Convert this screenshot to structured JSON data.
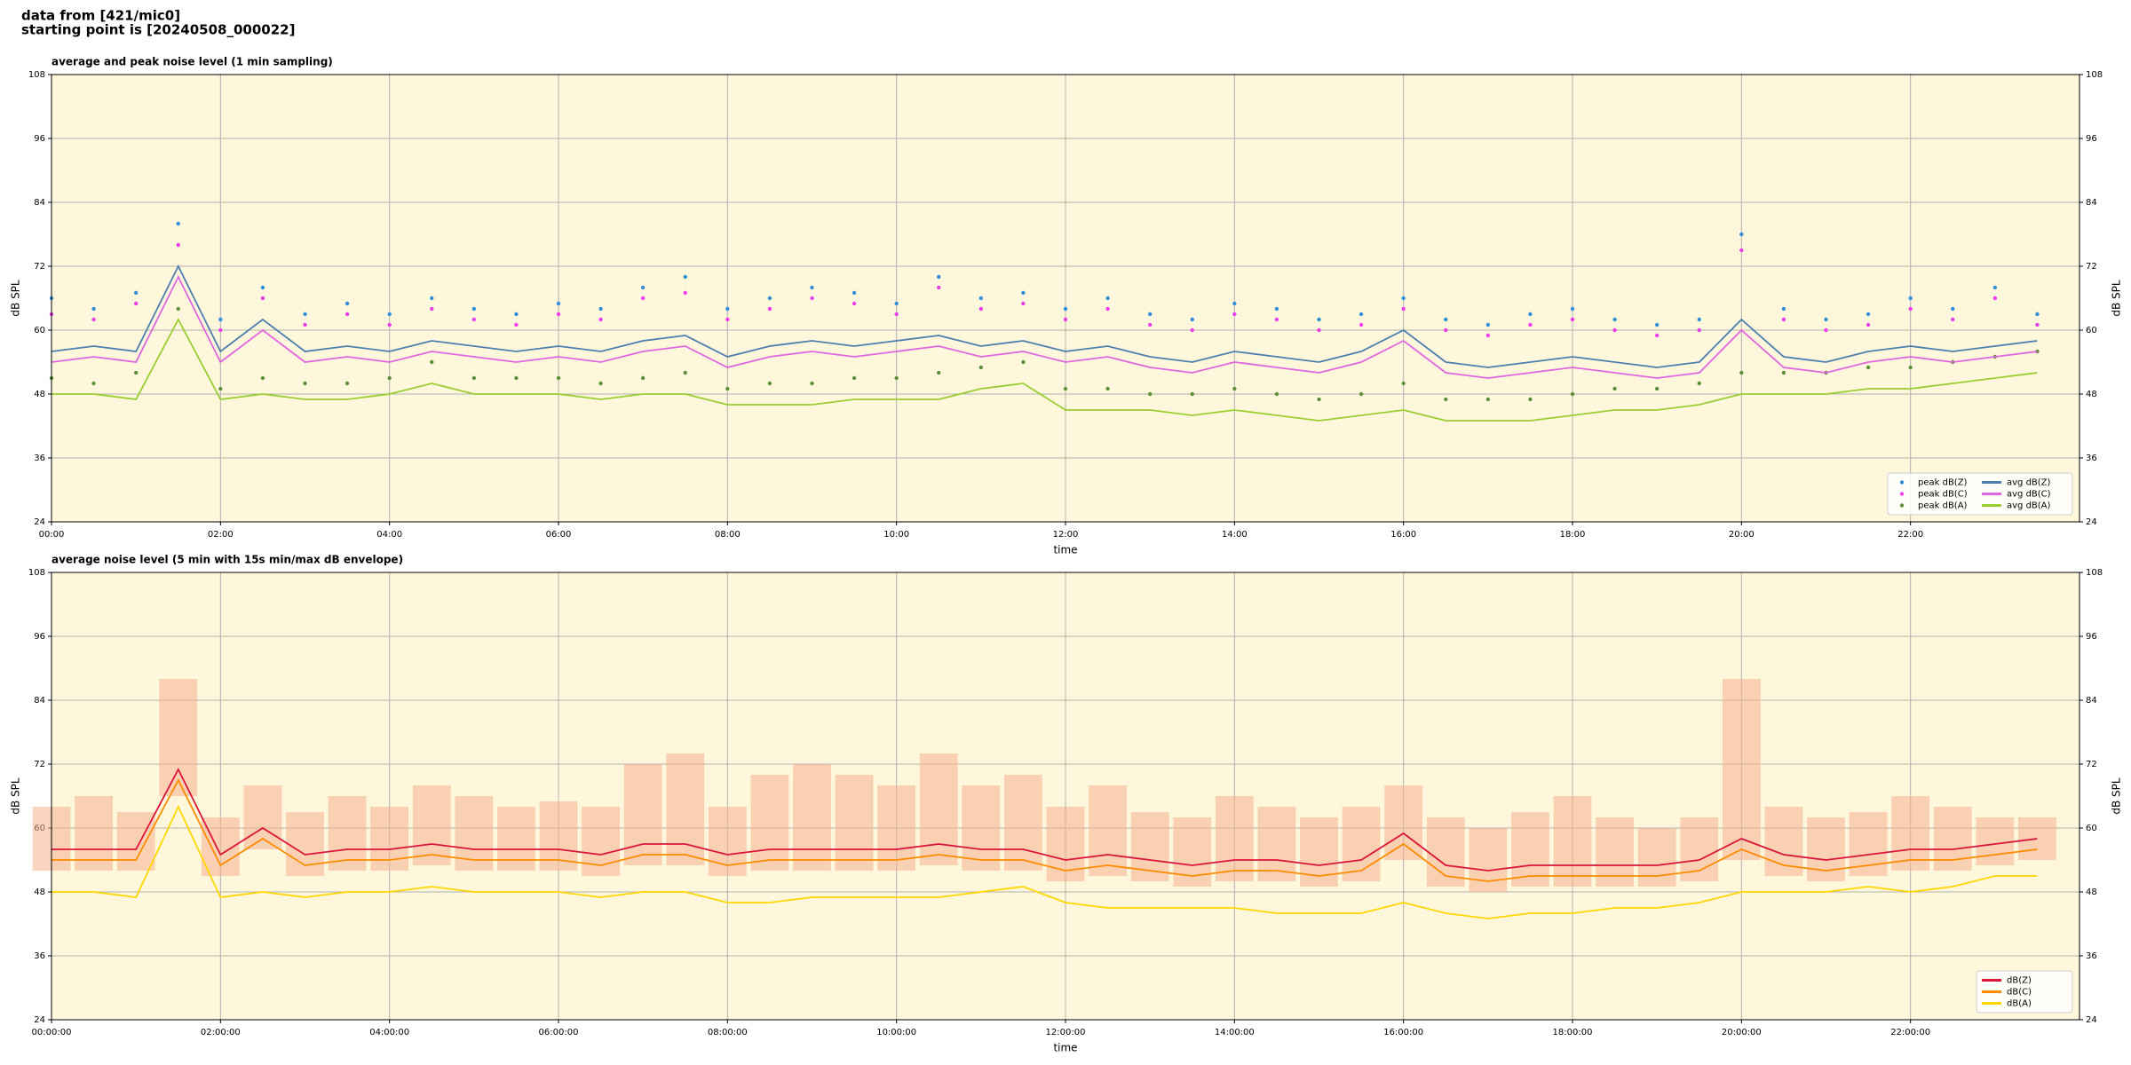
{
  "header": {
    "lines": [
      "data from [421/mic0]",
      "starting point is [20240508_000022]"
    ]
  },
  "chart_data": [
    {
      "type": "line",
      "title": "average and peak noise level (1 min sampling)",
      "x_label": "time",
      "y_label": "dB SPL",
      "background": "#fff7dc",
      "grid": true,
      "legend": "lower right",
      "x": [
        0,
        30,
        60,
        90,
        120,
        150,
        180,
        210,
        240,
        270,
        300,
        330,
        360,
        390,
        420,
        450,
        480,
        510,
        540,
        570,
        600,
        630,
        660,
        690,
        720,
        750,
        780,
        810,
        840,
        870,
        900,
        930,
        960,
        990,
        1020,
        1050,
        1080,
        1110,
        1140,
        1170,
        1200,
        1230,
        1260,
        1290,
        1320,
        1350,
        1380,
        1410
      ],
      "xlim": [
        0,
        1440
      ],
      "xticks": [
        {
          "value": 0,
          "label": "00:00"
        },
        {
          "value": 120,
          "label": "02:00"
        },
        {
          "value": 240,
          "label": "04:00"
        },
        {
          "value": 360,
          "label": "06:00"
        },
        {
          "value": 480,
          "label": "08:00"
        },
        {
          "value": 600,
          "label": "10:00"
        },
        {
          "value": 720,
          "label": "12:00"
        },
        {
          "value": 840,
          "label": "14:00"
        },
        {
          "value": 960,
          "label": "16:00"
        },
        {
          "value": 1080,
          "label": "18:00"
        },
        {
          "value": 1200,
          "label": "20:00"
        },
        {
          "value": 1320,
          "label": "22:00"
        }
      ],
      "ylim": [
        24,
        108
      ],
      "yticks": [
        24,
        36,
        48,
        60,
        72,
        84,
        96,
        108
      ],
      "series": [
        {
          "name": "peak dB(Z)",
          "type": "scatter",
          "color": "#2f8fd8",
          "values": [
            66,
            64,
            67,
            80,
            62,
            68,
            63,
            65,
            63,
            66,
            64,
            63,
            65,
            64,
            68,
            70,
            64,
            66,
            68,
            67,
            65,
            70,
            66,
            67,
            64,
            66,
            63,
            62,
            65,
            64,
            62,
            63,
            66,
            62,
            61,
            63,
            64,
            62,
            61,
            62,
            78,
            64,
            62,
            63,
            66,
            64,
            68,
            63
          ]
        },
        {
          "name": "peak dB(C)",
          "type": "scatter",
          "color": "#e83ee8",
          "values": [
            63,
            62,
            65,
            76,
            60,
            66,
            61,
            63,
            61,
            64,
            62,
            61,
            63,
            62,
            66,
            67,
            62,
            64,
            66,
            65,
            63,
            68,
            64,
            65,
            62,
            64,
            61,
            60,
            63,
            62,
            60,
            61,
            64,
            60,
            59,
            61,
            62,
            60,
            59,
            60,
            75,
            62,
            60,
            61,
            64,
            62,
            66,
            61
          ]
        },
        {
          "name": "peak dB(A)",
          "type": "scatter",
          "color": "#5e8f3a",
          "values": [
            51,
            50,
            52,
            64,
            49,
            51,
            50,
            50,
            51,
            54,
            51,
            51,
            51,
            50,
            51,
            52,
            49,
            50,
            50,
            51,
            51,
            52,
            53,
            54,
            49,
            49,
            48,
            48,
            49,
            48,
            47,
            48,
            50,
            47,
            47,
            47,
            48,
            49,
            49,
            50,
            52,
            52,
            52,
            53,
            53,
            54,
            55,
            56
          ]
        },
        {
          "name": "avg dB(Z)",
          "type": "line",
          "color": "#4a7fb0",
          "values": [
            56,
            57,
            56,
            72,
            56,
            62,
            56,
            57,
            56,
            58,
            57,
            56,
            57,
            56,
            58,
            59,
            55,
            57,
            58,
            57,
            58,
            59,
            57,
            58,
            56,
            57,
            55,
            54,
            56,
            55,
            54,
            56,
            60,
            54,
            53,
            54,
            55,
            54,
            53,
            54,
            62,
            55,
            54,
            56,
            57,
            56,
            57,
            58
          ]
        },
        {
          "name": "avg dB(C)",
          "type": "line",
          "color": "#e066e0",
          "values": [
            54,
            55,
            54,
            70,
            54,
            60,
            54,
            55,
            54,
            56,
            55,
            54,
            55,
            54,
            56,
            57,
            53,
            55,
            56,
            55,
            56,
            57,
            55,
            56,
            54,
            55,
            53,
            52,
            54,
            53,
            52,
            54,
            58,
            52,
            51,
            52,
            53,
            52,
            51,
            52,
            60,
            53,
            52,
            54,
            55,
            54,
            55,
            56
          ]
        },
        {
          "name": "avg dB(A)",
          "type": "line",
          "color": "#9acd32",
          "values": [
            48,
            48,
            47,
            62,
            47,
            48,
            47,
            47,
            48,
            50,
            48,
            48,
            48,
            47,
            48,
            48,
            46,
            46,
            46,
            47,
            47,
            47,
            49,
            50,
            45,
            45,
            45,
            44,
            45,
            44,
            43,
            44,
            45,
            43,
            43,
            43,
            44,
            45,
            45,
            46,
            48,
            48,
            48,
            49,
            49,
            50,
            51,
            52
          ]
        }
      ]
    },
    {
      "type": "line",
      "title": "average noise level (5 min with 15s min/max dB envelope)",
      "x_label": "time",
      "y_label": "dB SPL",
      "background": "#fff7dc",
      "grid": true,
      "legend": "lower right",
      "x": [
        0,
        30,
        60,
        90,
        120,
        150,
        180,
        210,
        240,
        270,
        300,
        330,
        360,
        390,
        420,
        450,
        480,
        510,
        540,
        570,
        600,
        630,
        660,
        690,
        720,
        750,
        780,
        810,
        840,
        870,
        900,
        930,
        960,
        990,
        1020,
        1050,
        1080,
        1110,
        1140,
        1170,
        1200,
        1230,
        1260,
        1290,
        1320,
        1350,
        1380,
        1410
      ],
      "xlim": [
        0,
        1440
      ],
      "xticks": [
        {
          "value": 0,
          "label": "00:00:00"
        },
        {
          "value": 120,
          "label": "02:00:00"
        },
        {
          "value": 240,
          "label": "04:00:00"
        },
        {
          "value": 360,
          "label": "06:00:00"
        },
        {
          "value": 480,
          "label": "08:00:00"
        },
        {
          "value": 600,
          "label": "10:00:00"
        },
        {
          "value": 720,
          "label": "12:00:00"
        },
        {
          "value": 840,
          "label": "14:00:00"
        },
        {
          "value": 960,
          "label": "16:00:00"
        },
        {
          "value": 1080,
          "label": "18:00:00"
        },
        {
          "value": 1200,
          "label": "20:00:00"
        },
        {
          "value": 1320,
          "label": "22:00:00"
        }
      ],
      "ylim": [
        24,
        108
      ],
      "yticks": [
        24,
        36,
        48,
        60,
        72,
        84,
        96,
        108
      ],
      "envelope": {
        "color": "#f4b08e",
        "upper": [
          64,
          66,
          63,
          88,
          62,
          68,
          63,
          66,
          64,
          68,
          66,
          64,
          65,
          64,
          72,
          74,
          64,
          70,
          72,
          70,
          68,
          74,
          68,
          70,
          64,
          68,
          63,
          62,
          66,
          64,
          62,
          64,
          68,
          62,
          60,
          63,
          66,
          62,
          60,
          62,
          88,
          64,
          62,
          63,
          66,
          64,
          62,
          62
        ],
        "lower": [
          52,
          52,
          52,
          66,
          51,
          56,
          51,
          52,
          52,
          53,
          52,
          52,
          52,
          51,
          53,
          53,
          51,
          52,
          52,
          52,
          52,
          53,
          52,
          52,
          50,
          51,
          50,
          49,
          50,
          50,
          49,
          50,
          54,
          49,
          48,
          49,
          49,
          49,
          49,
          50,
          54,
          51,
          50,
          51,
          52,
          52,
          53,
          54
        ]
      },
      "series": [
        {
          "name": "dB(Z)",
          "type": "line",
          "color": "#dc143c",
          "values": [
            56,
            56,
            56,
            71,
            55,
            60,
            55,
            56,
            56,
            57,
            56,
            56,
            56,
            55,
            57,
            57,
            55,
            56,
            56,
            56,
            56,
            57,
            56,
            56,
            54,
            55,
            54,
            53,
            54,
            54,
            53,
            54,
            59,
            53,
            52,
            53,
            53,
            53,
            53,
            54,
            58,
            55,
            54,
            55,
            56,
            56,
            57,
            58
          ]
        },
        {
          "name": "dB(C)",
          "type": "line",
          "color": "#ff8c00",
          "values": [
            54,
            54,
            54,
            69,
            53,
            58,
            53,
            54,
            54,
            55,
            54,
            54,
            54,
            53,
            55,
            55,
            53,
            54,
            54,
            54,
            54,
            55,
            54,
            54,
            52,
            53,
            52,
            51,
            52,
            52,
            51,
            52,
            57,
            51,
            50,
            51,
            51,
            51,
            51,
            52,
            56,
            53,
            52,
            53,
            54,
            54,
            55,
            56
          ]
        },
        {
          "name": "dB(A)",
          "type": "line",
          "color": "#ffd700",
          "values": [
            48,
            48,
            47,
            64,
            47,
            48,
            47,
            48,
            48,
            49,
            48,
            48,
            48,
            47,
            48,
            48,
            46,
            46,
            47,
            47,
            47,
            47,
            48,
            49,
            46,
            45,
            45,
            45,
            45,
            44,
            44,
            44,
            46,
            44,
            43,
            44,
            44,
            45,
            45,
            46,
            48,
            48,
            48,
            49,
            48,
            49,
            51,
            51
          ]
        }
      ]
    }
  ]
}
